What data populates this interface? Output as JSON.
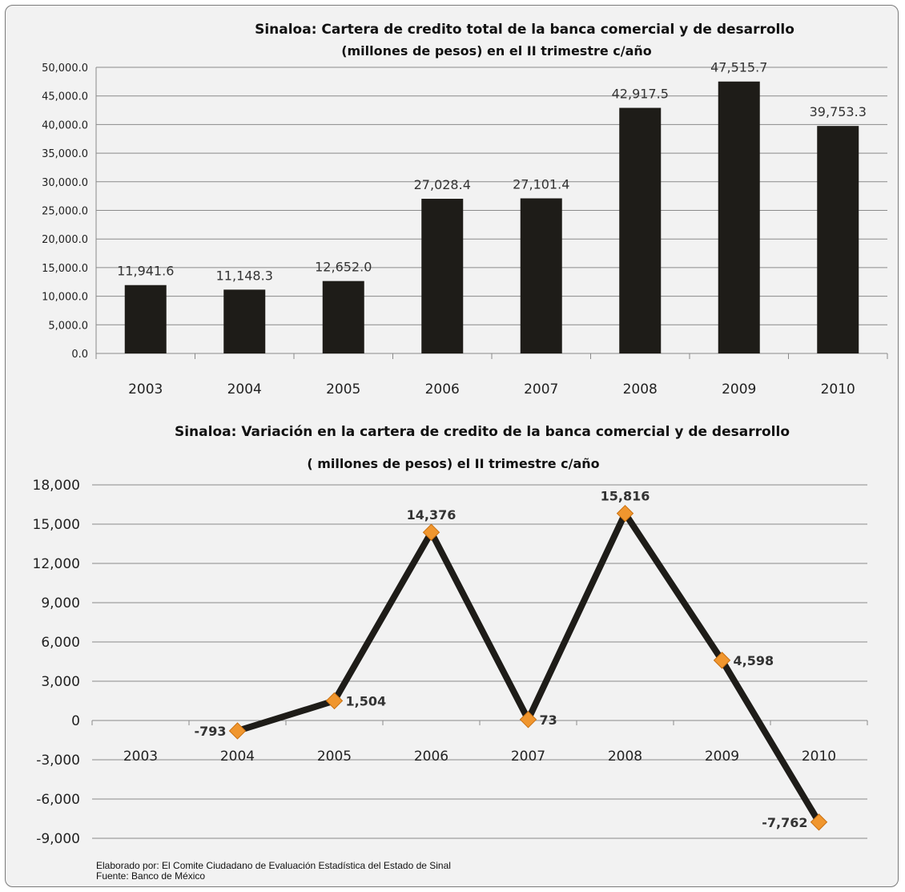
{
  "chart_data": [
    {
      "type": "bar",
      "title": "Sinaloa: Cartera de credito  total de la banca comercial y de desarrollo",
      "subtitle": "(millones de pesos) en el II trimestre  c/año",
      "categories": [
        "2003",
        "2004",
        "2005",
        "2006",
        "2007",
        "2008",
        "2009",
        "2010"
      ],
      "values": [
        11941.6,
        11148.3,
        12652.0,
        27028.4,
        27101.4,
        42917.5,
        47515.7,
        39753.3
      ],
      "data_labels": [
        "11,941.6",
        "11,148.3",
        "12,652.0",
        "27,028.4",
        "27,101.4",
        "42,917.5",
        "47,515.7",
        "39,753.3"
      ],
      "yticks": [
        "0.0",
        "5,000.0",
        "10,000.0",
        "15,000.0",
        "20,000.0",
        "25,000.0",
        "30,000.0",
        "35,000.0",
        "40,000.0",
        "45,000.0",
        "50,000.0"
      ],
      "ylim": [
        0,
        50000
      ],
      "grid": true,
      "bar_color": "#1e1c18"
    },
    {
      "type": "line",
      "title": "Sinaloa: Variación  en la cartera de credito de la banca comercial y de desarrollo",
      "subtitle": "( millones de pesos) el  II trimestre  c/año",
      "categories": [
        "2003",
        "2004",
        "2005",
        "2006",
        "2007",
        "2008",
        "2009",
        "2010"
      ],
      "values": [
        null,
        -793,
        1504,
        14376,
        73,
        15816,
        4598,
        -7762
      ],
      "data_labels": [
        "",
        "-793",
        "1,504",
        "14,376",
        "73",
        "15,816",
        "4,598",
        "-7,762"
      ],
      "yticks": [
        "-9,000",
        "-6,000",
        "-3,000",
        "0",
        "3,000",
        "6,000",
        "9,000",
        "12,000",
        "15,000",
        "18,000"
      ],
      "ylim": [
        -9000,
        18000
      ],
      "grid": true,
      "line_color": "#1e1c18",
      "marker_color": "#f0962e",
      "negative_label_color": "#e0102a"
    }
  ],
  "footer": {
    "line1": "Elaborado por:  El Comite Ciudadano de Evaluación Estadística del Estado de Sinal",
    "line2": "Fuente: Banco de México"
  }
}
